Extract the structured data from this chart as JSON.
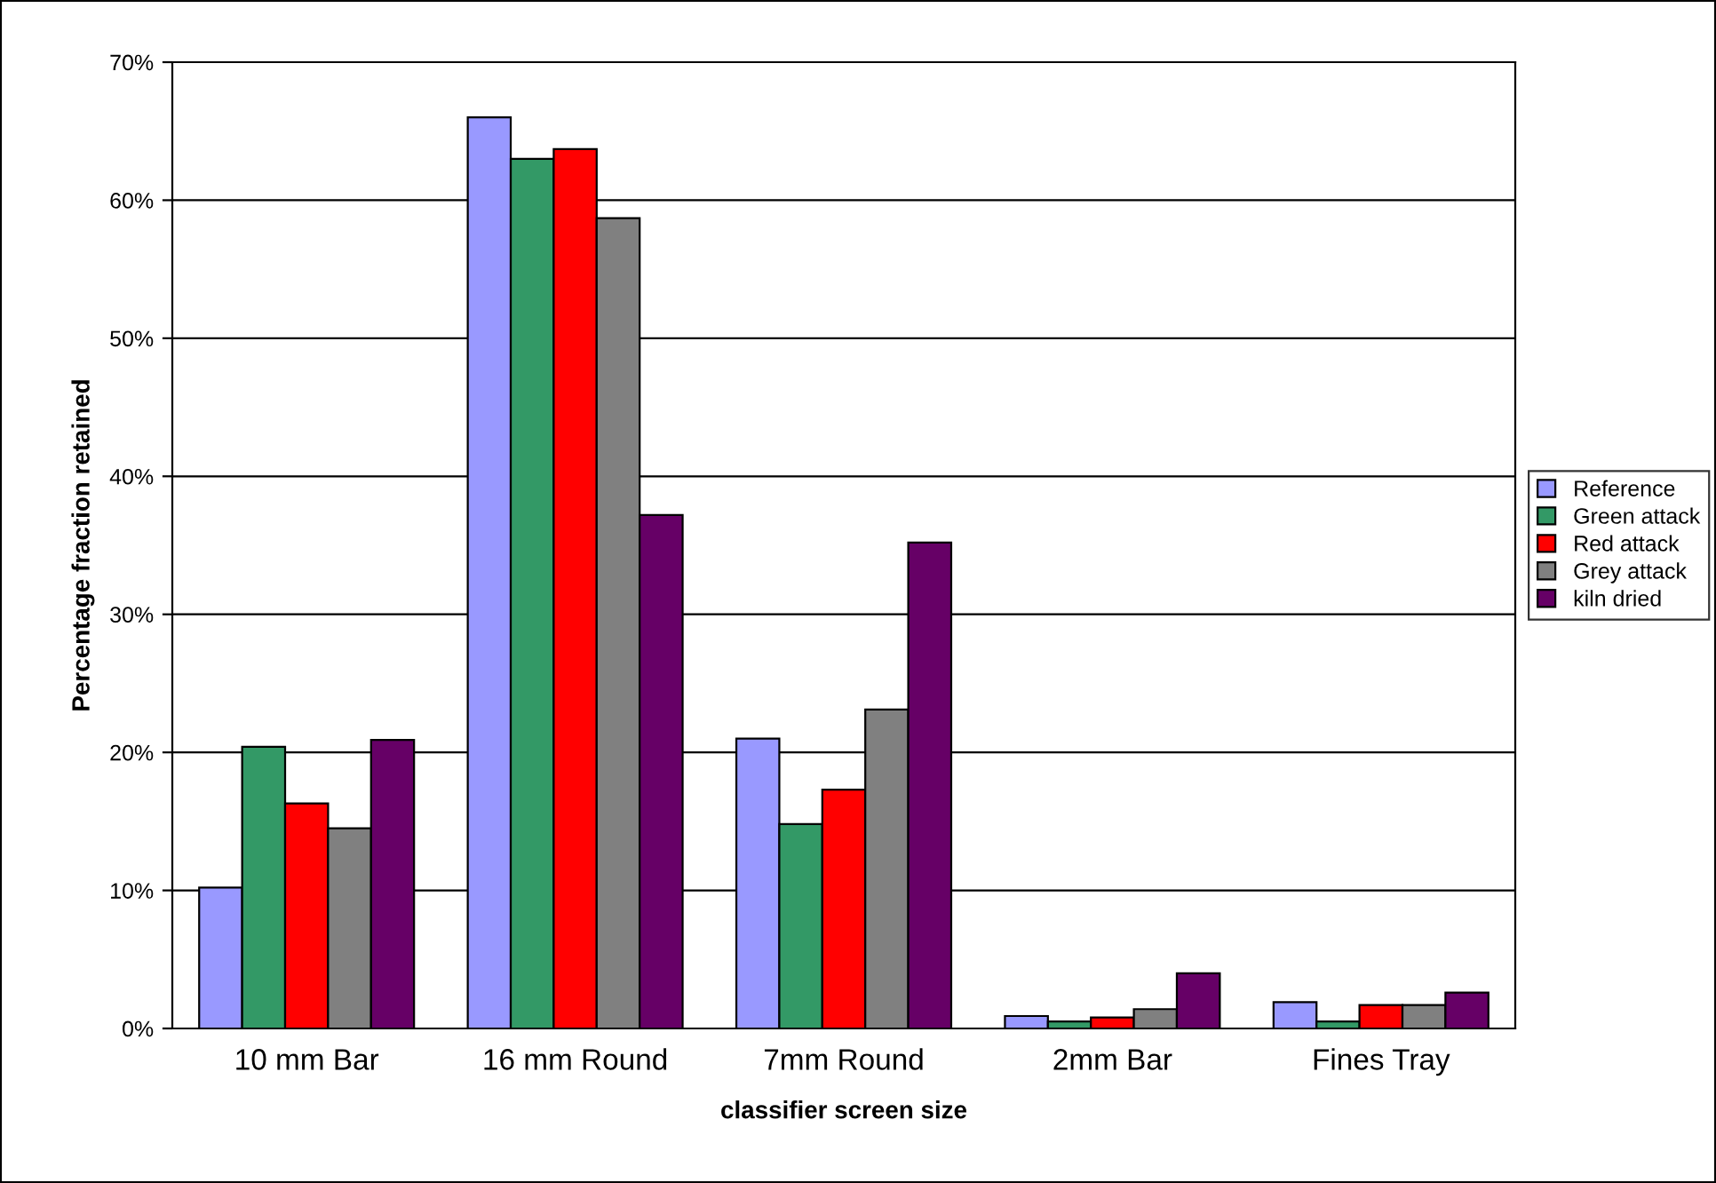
{
  "chart_data": {
    "type": "bar",
    "xlabel": "classifier screen size",
    "ylabel": "Percentage fraction retained",
    "categories": [
      "10 mm Bar",
      "16 mm Round",
      "7mm Round",
      "2mm Bar",
      "Fines Tray"
    ],
    "series": [
      {
        "name": "Reference",
        "color": "#9999ff",
        "values": [
          10.2,
          66.0,
          21.0,
          0.9,
          1.9
        ]
      },
      {
        "name": "Green attack",
        "color": "#339966",
        "values": [
          20.4,
          63.0,
          14.8,
          0.5,
          0.5
        ]
      },
      {
        "name": "Red attack",
        "color": "#ff0000",
        "values": [
          16.3,
          63.7,
          17.3,
          0.8,
          1.7
        ]
      },
      {
        "name": "Grey attack",
        "color": "#808080",
        "values": [
          14.5,
          58.7,
          23.1,
          1.4,
          1.7
        ]
      },
      {
        "name": "kiln dried",
        "color": "#660066",
        "values": [
          20.9,
          37.2,
          35.2,
          4.0,
          2.6
        ]
      }
    ],
    "ylim": [
      0,
      70
    ],
    "yticks": [
      {
        "value": 0,
        "label": "0%"
      },
      {
        "value": 10,
        "label": "10%"
      },
      {
        "value": 20,
        "label": "20%"
      },
      {
        "value": 30,
        "label": "30%"
      },
      {
        "value": 40,
        "label": "40%"
      },
      {
        "value": 50,
        "label": "50%"
      },
      {
        "value": 60,
        "label": "60%"
      },
      {
        "value": 70,
        "label": "70%"
      }
    ],
    "grid": "y",
    "legend": "right"
  }
}
